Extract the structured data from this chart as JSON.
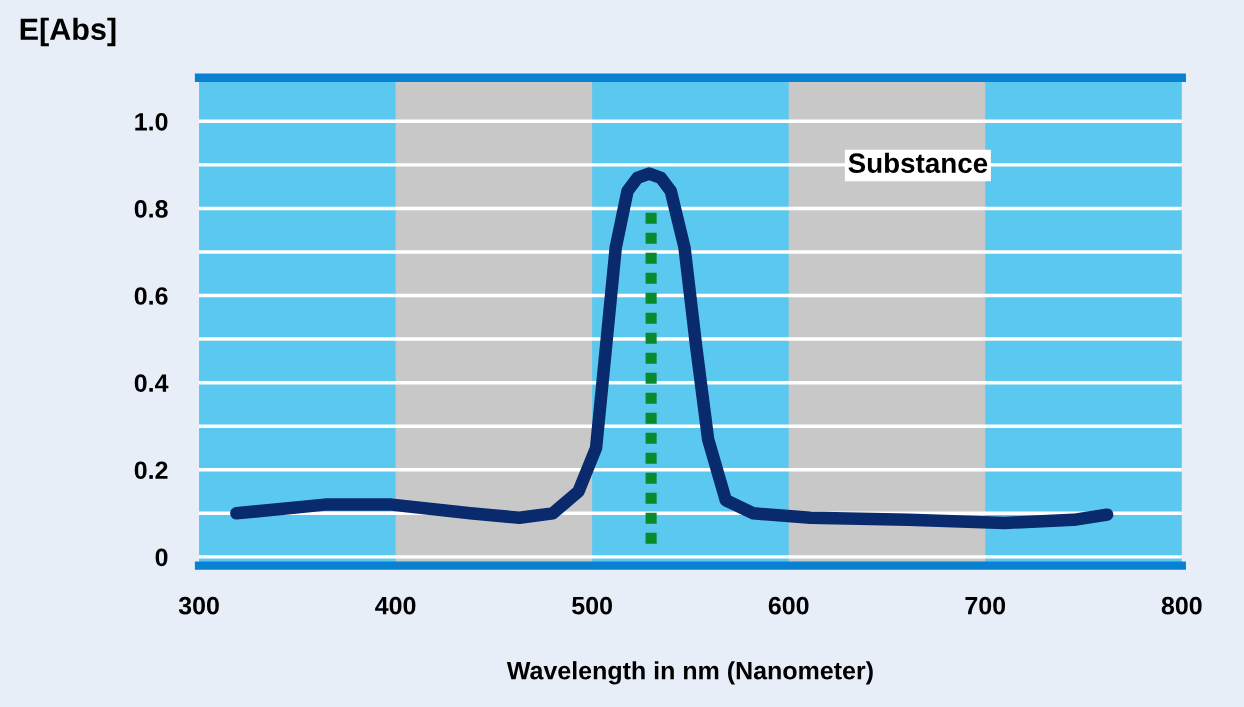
{
  "chart_data": {
    "type": "line",
    "xlabel": "Wavelength in nm (Nanometer)",
    "ylabel": "E[Abs]",
    "xlim": [
      300,
      800
    ],
    "xticks": [
      300,
      400,
      500,
      600,
      700,
      800
    ],
    "ylim": [
      -0.02,
      1.1
    ],
    "yticks": [
      0,
      {
        "value": 0.1,
        "label": null
      },
      0.2,
      {
        "value": 0.3,
        "label": null
      },
      0.4,
      {
        "value": 0.5,
        "label": null
      },
      0.6,
      {
        "value": 0.7,
        "label": null
      },
      0.8,
      {
        "value": 0.9,
        "label": null
      },
      {
        "value": 1,
        "label": "1.0"
      }
    ],
    "grid": "y",
    "annotations": [
      "Substance"
    ],
    "bands": [
      {
        "axis": "x",
        "from": 400,
        "to": 500,
        "color": "#c8c8c8"
      },
      {
        "axis": "x",
        "from": 600,
        "to": 700,
        "color": "#c8c8c8"
      }
    ],
    "series": [
      {
        "color": "#0a2a6e",
        "line_style": "solid",
        "x": [
          319,
          364,
          398,
          438,
          463,
          480,
          493,
          502,
          507,
          512,
          518,
          523,
          529,
          535,
          540,
          547,
          553,
          559,
          568,
          582,
          611,
          661,
          710,
          745,
          762
        ],
        "values": [
          0.1,
          0.12,
          0.12,
          0.1,
          0.09,
          0.1,
          0.15,
          0.25,
          0.48,
          0.71,
          0.84,
          0.87,
          0.88,
          0.87,
          0.84,
          0.71,
          0.48,
          0.27,
          0.13,
          0.1,
          0.09,
          0.085,
          0.078,
          0.085,
          0.097
        ]
      },
      {
        "color": "#0a8a2a",
        "line_style": "dotted",
        "x": [
          530,
          530
        ],
        "values": [
          0.03,
          0.8
        ]
      }
    ]
  }
}
